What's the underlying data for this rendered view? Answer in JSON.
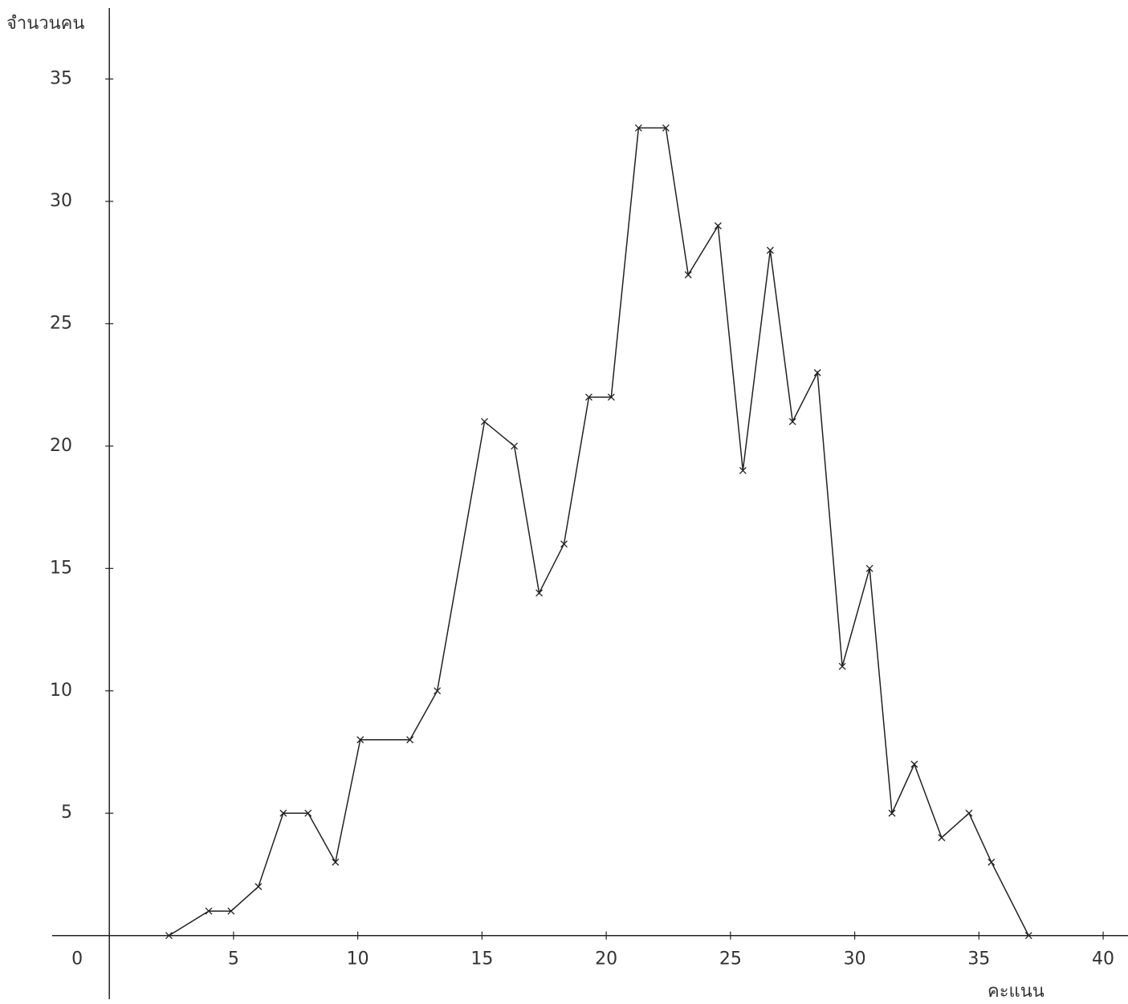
{
  "chart_data": {
    "type": "line",
    "ylabel": "จำนวนคน",
    "xlabel": "คะแนน",
    "x": [
      2.4,
      4,
      4.9,
      6,
      7,
      8,
      9.1,
      10.1,
      12.1,
      13.2,
      15.1,
      16.3,
      17.3,
      18.3,
      19.3,
      20.2,
      21.3,
      22.4,
      23.3,
      24.5,
      25.5,
      26.6,
      27.5,
      28.5,
      29.5,
      30.6,
      31.5,
      32.4,
      33.5,
      34.6,
      35.5,
      37
    ],
    "series": [
      {
        "color": "#222222",
        "values": [
          0,
          1,
          1,
          2,
          5,
          5,
          3,
          8,
          8,
          10,
          21,
          20,
          14,
          16,
          22,
          22,
          33,
          33,
          27,
          29,
          19,
          28,
          21,
          23,
          11,
          15,
          5,
          7,
          4,
          5,
          3,
          0
        ]
      }
    ],
    "xlim": [
      -2.3,
      41
    ],
    "xticks": [
      0,
      5,
      10,
      15,
      20,
      25,
      30,
      35,
      40
    ],
    "ylim": [
      -2.6,
      37.9
    ],
    "yticks": [
      5,
      10,
      15,
      20,
      25,
      30,
      35
    ]
  }
}
